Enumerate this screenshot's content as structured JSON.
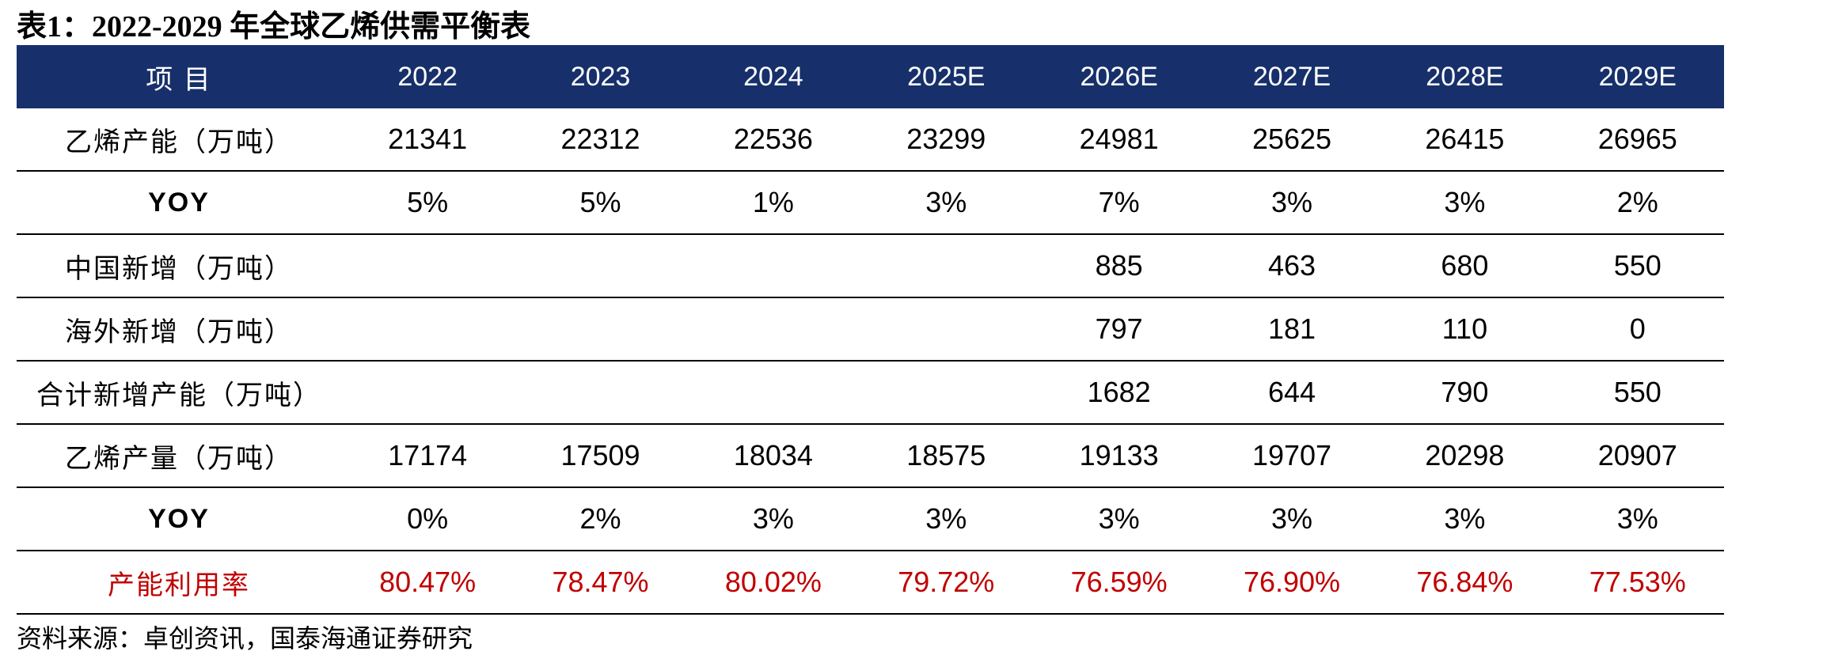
{
  "header": {
    "title": "表1：2022-2029 年全球乙烯供需平衡表"
  },
  "table": {
    "columns": [
      "项 目",
      "2022",
      "2023",
      "2024",
      "2025E",
      "2026E",
      "2027E",
      "2028E",
      "2029E"
    ],
    "rows": [
      [
        "乙烯产能（万吨）",
        "21341",
        "22312",
        "22536",
        "23299",
        "24981",
        "25625",
        "26415",
        "26965"
      ],
      [
        "YOY",
        "5%",
        "5%",
        "1%",
        "3%",
        "7%",
        "3%",
        "3%",
        "2%"
      ],
      [
        "中国新增（万吨）",
        null,
        null,
        null,
        null,
        "885",
        "463",
        "680",
        "550"
      ],
      [
        "海外新增（万吨）",
        null,
        null,
        null,
        null,
        "797",
        "181",
        "110",
        "0"
      ],
      [
        "合计新增产能（万吨）",
        null,
        null,
        null,
        null,
        "1682",
        "644",
        "790",
        "550"
      ],
      [
        "乙烯产量（万吨）",
        "17174",
        "17509",
        "18034",
        "18575",
        "19133",
        "19707",
        "20298",
        "20907"
      ],
      [
        "YOY",
        "0%",
        "2%",
        "3%",
        "3%",
        "3%",
        "3%",
        "3%",
        "3%"
      ],
      [
        "产能利用率",
        "80.47%",
        "78.47%",
        "80.02%",
        "79.72%",
        "76.59%",
        "76.90%",
        "76.84%",
        "77.53%"
      ]
    ]
  },
  "source": "资料来源：卓创资讯，国泰海通证券研究"
}
